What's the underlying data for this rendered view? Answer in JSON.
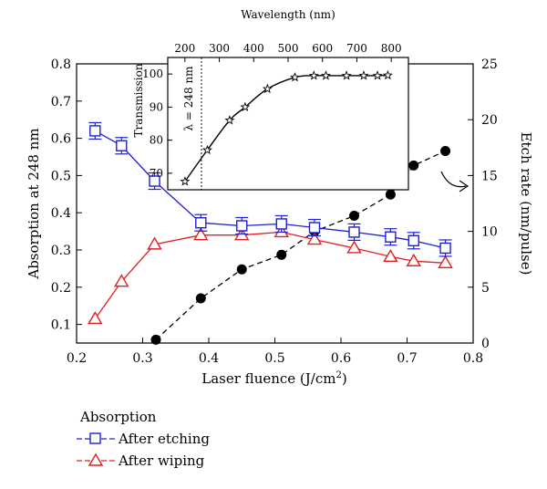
{
  "chart_data": [
    {
      "type": "line",
      "xlabel": "Laser fluence (J/cm",
      "xlabel_sup": "2",
      "xlabel_close": ")",
      "ylabel_left": "Absorption at 248 nm",
      "ylabel_right": "Etch rate (nm/pulse)",
      "xlim": [
        0.2,
        0.8
      ],
      "ylim_left": [
        0.05,
        0.8
      ],
      "ylim_right": [
        0,
        25
      ],
      "x_ticks": [
        "0.2",
        "0.3",
        "0.4",
        "0.5",
        "0.6",
        "0.7",
        "0.8"
      ],
      "y_left_ticks": [
        "0.1",
        "0.2",
        "0.3",
        "0.4",
        "0.5",
        "0.6",
        "0.7",
        "0.8"
      ],
      "y_right_ticks": [
        "0",
        "5",
        "10",
        "15",
        "20",
        "25"
      ],
      "legend_title": "Absorption",
      "legend_position": "bottom-left",
      "series": [
        {
          "name": "After etching",
          "axis": "left",
          "color": "#1f1fd0",
          "marker": "square",
          "x": [
            0.228,
            0.268,
            0.318,
            0.388,
            0.45,
            0.51,
            0.56,
            0.62,
            0.675,
            0.71,
            0.758
          ],
          "y": [
            0.62,
            0.58,
            0.485,
            0.373,
            0.365,
            0.37,
            0.36,
            0.348,
            0.335,
            0.325,
            0.305
          ]
        },
        {
          "name": "After wiping",
          "axis": "left",
          "color": "#e02020",
          "marker": "triangle",
          "x": [
            0.228,
            0.268,
            0.318,
            0.388,
            0.45,
            0.51,
            0.56,
            0.62,
            0.675,
            0.71,
            0.758
          ],
          "y": [
            0.115,
            0.215,
            0.315,
            0.34,
            0.34,
            0.348,
            0.328,
            0.305,
            0.282,
            0.27,
            0.265
          ]
        },
        {
          "name": "",
          "axis": "right",
          "color": "#000000",
          "marker": "circle",
          "dashed": true,
          "x": [
            0.32,
            0.388,
            0.45,
            0.51,
            0.56,
            0.62,
            0.675,
            0.71,
            0.758
          ],
          "y": [
            0.3,
            4.0,
            6.6,
            7.9,
            10.0,
            11.4,
            13.3,
            15.9,
            17.2
          ]
        }
      ]
    },
    {
      "type": "line",
      "xlabel": "Wavelength (nm)",
      "ylabel": "Transmission",
      "annotation": "λ = 248 nm",
      "annotation_x": 248,
      "xlim": [
        150,
        850
      ],
      "ylim": [
        65,
        105
      ],
      "x_ticks": [
        "200",
        "300",
        "400",
        "500",
        "600",
        "700",
        "800"
      ],
      "y_ticks": [
        "70",
        "80",
        "90",
        "100"
      ],
      "series": [
        {
          "name": "",
          "marker": "star",
          "color": "#000000",
          "x": [
            200,
            265,
            330,
            375,
            440,
            520,
            575,
            610,
            670,
            720,
            760,
            790
          ],
          "y": [
            67.5,
            77,
            86,
            90,
            95.5,
            99,
            99.5,
            99.5,
            99.5,
            99.5,
            99.5,
            99.6
          ]
        }
      ]
    }
  ]
}
